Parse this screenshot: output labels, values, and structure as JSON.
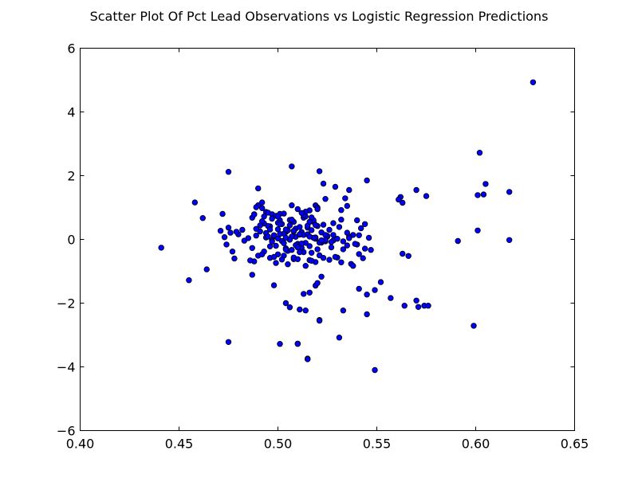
{
  "chart_data": {
    "type": "scatter",
    "title": "Scatter Plot Of Pct Lead Observations vs Logistic Regression Predictions",
    "xlabel": "",
    "ylabel": "",
    "xlim": [
      0.4,
      0.65
    ],
    "ylim": [
      -6,
      6
    ],
    "x_ticks": [
      "0.40",
      "0.45",
      "0.50",
      "0.55",
      "0.60",
      "0.65"
    ],
    "y_ticks": [
      "6",
      "4",
      "2",
      "0",
      "−2",
      "−4",
      "−6"
    ],
    "grid": false,
    "colors": {
      "marker_fill": "#0000ff",
      "marker_edge": "#000000",
      "axes": "#000000",
      "background": "#ffffff"
    },
    "series": [
      {
        "x": [
          0.629,
          0.602,
          0.507,
          0.521,
          0.475,
          0.49,
          0.458,
          0.472,
          0.462,
          0.455,
          0.464,
          0.441,
          0.475,
          0.501,
          0.51,
          0.515,
          0.521,
          0.523,
          0.529,
          0.534,
          0.536,
          0.545,
          0.524,
          0.519,
          0.535,
          0.532,
          0.544,
          0.562,
          0.563,
          0.561,
          0.57,
          0.575,
          0.601,
          0.605,
          0.604,
          0.617,
          0.601,
          0.591,
          0.617,
          0.563,
          0.566,
          0.498,
          0.519,
          0.52,
          0.522,
          0.513,
          0.516,
          0.506,
          0.504,
          0.511,
          0.514,
          0.521,
          0.533,
          0.541,
          0.545,
          0.549,
          0.552,
          0.557,
          0.564,
          0.57,
          0.571,
          0.574,
          0.576,
          0.545,
          0.51,
          0.531,
          0.515,
          0.549,
          0.599,
          0.475,
          0.487,
          0.473,
          0.476,
          0.48,
          0.482,
          0.477,
          0.478,
          0.485,
          0.487,
          0.489,
          0.488,
          0.491,
          0.493,
          0.494,
          0.496,
          0.497,
          0.498,
          0.499,
          0.5,
          0.501,
          0.502,
          0.503,
          0.504,
          0.505,
          0.506,
          0.507,
          0.508,
          0.509,
          0.51,
          0.511,
          0.512,
          0.513,
          0.514,
          0.515,
          0.516,
          0.517,
          0.518,
          0.519,
          0.52,
          0.521,
          0.522,
          0.523,
          0.524,
          0.525,
          0.526,
          0.527,
          0.528,
          0.53,
          0.531,
          0.533,
          0.535,
          0.537,
          0.538,
          0.54,
          0.542,
          0.543,
          0.546,
          0.493,
          0.497,
          0.5,
          0.503,
          0.506,
          0.509,
          0.512,
          0.515,
          0.518,
          0.492,
          0.495,
          0.499,
          0.502,
          0.505,
          0.508,
          0.511,
          0.514,
          0.517,
          0.52,
          0.49,
          0.494,
          0.497,
          0.501,
          0.504,
          0.507,
          0.51,
          0.513,
          0.516,
          0.519,
          0.522,
          0.525,
          0.528,
          0.496,
          0.5,
          0.503,
          0.507,
          0.51,
          0.513,
          0.516,
          0.519,
          0.489,
          0.492,
          0.495,
          0.498,
          0.501,
          0.504,
          0.508,
          0.511,
          0.514,
          0.517,
          0.488,
          0.491,
          0.494,
          0.497,
          0.5,
          0.503,
          0.506,
          0.509,
          0.512,
          0.515,
          0.518,
          0.521,
          0.524,
          0.527,
          0.53,
          0.533,
          0.536,
          0.539,
          0.541,
          0.487,
          0.49,
          0.493,
          0.496,
          0.499,
          0.502,
          0.505,
          0.508,
          0.511,
          0.514,
          0.517,
          0.52,
          0.523,
          0.526,
          0.529,
          0.532,
          0.535,
          0.538,
          0.541,
          0.544,
          0.547,
          0.471,
          0.474,
          0.479,
          0.483,
          0.486,
          0.489,
          0.492,
          0.495,
          0.498,
          0.501,
          0.504,
          0.507,
          0.51,
          0.513,
          0.516,
          0.519,
          0.522,
          0.488,
          0.492,
          0.496,
          0.5,
          0.504,
          0.508,
          0.512,
          0.516,
          0.52,
          0.524,
          0.528,
          0.532,
          0.536,
          0.54
        ],
        "y": [
          4.93,
          2.72,
          2.29,
          2.14,
          2.12,
          1.6,
          1.16,
          0.8,
          0.67,
          -1.28,
          -0.94,
          -0.26,
          -3.22,
          -3.28,
          -3.27,
          -3.74,
          -2.53,
          1.75,
          1.65,
          1.29,
          1.55,
          1.85,
          1.27,
          1.07,
          1.05,
          0.62,
          0.48,
          1.33,
          1.15,
          1.25,
          1.55,
          1.36,
          1.39,
          1.74,
          1.41,
          1.49,
          0.28,
          -0.05,
          -0.02,
          -0.45,
          -0.52,
          -1.44,
          -1.45,
          -1.37,
          -1.17,
          -1.71,
          -1.67,
          -2.13,
          -2.0,
          -2.2,
          -2.23,
          -2.55,
          -2.23,
          -1.55,
          -1.73,
          -1.59,
          -1.34,
          -1.84,
          -2.08,
          -1.92,
          -2.12,
          -2.08,
          -2.08,
          -2.35,
          -3.28,
          -3.08,
          -3.76,
          -4.1,
          -2.71,
          0.37,
          0.68,
          0.07,
          0.21,
          0.16,
          0.3,
          -0.38,
          -0.6,
          0.04,
          -0.27,
          0.12,
          -0.69,
          0.25,
          0.5,
          0.86,
          0.41,
          0.79,
          0.1,
          -0.2,
          0.32,
          0.6,
          -0.05,
          0.81,
          0.23,
          -0.36,
          0.44,
          1.07,
          -0.62,
          0.08,
          0.95,
          0.15,
          -0.27,
          0.68,
          -0.11,
          0.37,
          0.91,
          -0.42,
          0.55,
          0.02,
          1.0,
          -0.5,
          0.22,
          0.46,
          -0.06,
          0.09,
          0.3,
          -0.25,
          0.14,
          -0.57,
          0.39,
          -0.31,
          0.21,
          -0.77,
          0.14,
          -0.16,
          0.35,
          -0.59,
          0.05,
          0.72,
          0.65,
          0.52,
          0.18,
          0.61,
          0.34,
          0.23,
          0.43,
          0.6,
          0.98,
          0.84,
          0.74,
          0.48,
          0.28,
          0.55,
          0.39,
          0.87,
          0.69,
          0.42,
          1.07,
          0.2,
          -0.03,
          0.17,
          -0.28,
          0.09,
          -0.14,
          0.14,
          -0.21,
          0.06,
          -0.1,
          0.11,
          -0.03,
          -0.58,
          -0.47,
          -0.51,
          -0.33,
          -0.62,
          -0.4,
          -0.65,
          -0.71,
          1.01,
          0.57,
          0.42,
          0.13,
          0.8,
          0.31,
          0.25,
          0.16,
          0.72,
          0.29,
          0.79,
          0.44,
          0.06,
          -0.07,
          0.03,
          -0.12,
          -0.01,
          -0.18,
          -0.13,
          0.16,
          0.05,
          -0.1,
          -0.02,
          -0.08,
          0.02,
          -0.06,
          0.08,
          -0.14,
          0.13,
          -1.11,
          -0.51,
          -0.38,
          -0.22,
          -0.74,
          -0.63,
          -0.78,
          -0.57,
          -0.4,
          -0.83,
          -0.67,
          -0.31,
          -0.58,
          -0.64,
          -0.55,
          -0.72,
          -0.19,
          -0.83,
          -0.46,
          -0.29,
          -0.33,
          0.27,
          -0.16,
          0.24,
          -0.04,
          -0.66,
          0.33,
          -0.47,
          0.09,
          -0.55,
          0.48,
          -0.32,
          0.62,
          -0.25,
          0.76,
          0.09,
          0.45,
          -0.03,
          0.78,
          1.16,
          0.31,
          0.72,
          0.05,
          0.27,
          0.83,
          0.55,
          0.95,
          0.14,
          0.51,
          0.92,
          0.04,
          0.6
        ]
      }
    ]
  }
}
